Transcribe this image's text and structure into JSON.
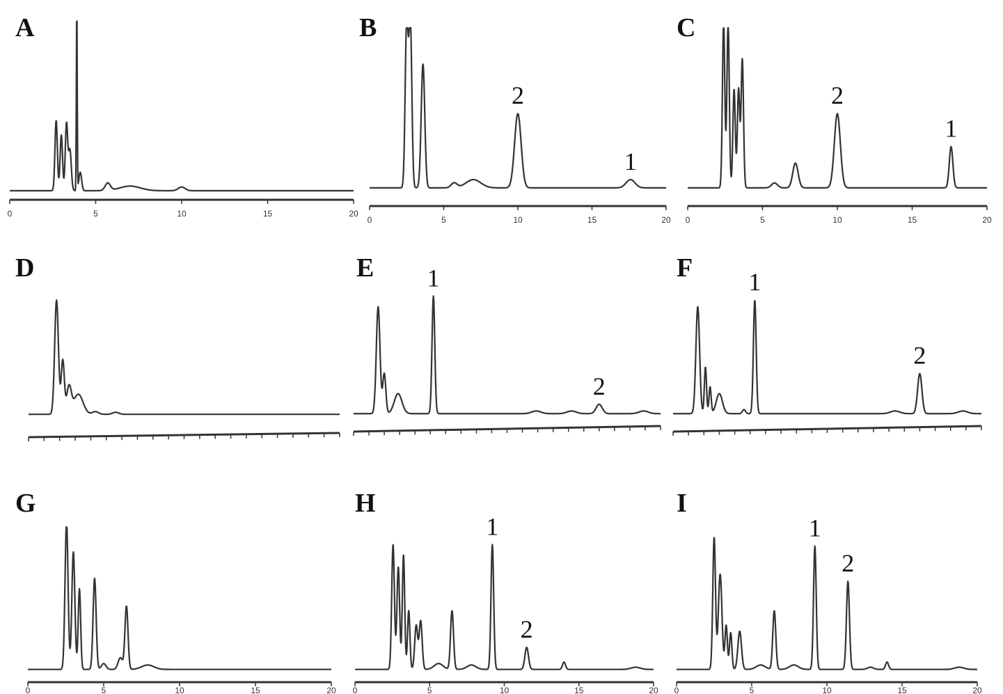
{
  "chart_data": [
    {
      "type": "line",
      "panel": "A",
      "xlim": [
        0,
        20
      ],
      "xticks": [
        0,
        5,
        10,
        15,
        20
      ],
      "tick_labels": [
        "0",
        "5",
        "10",
        "15",
        "20"
      ],
      "baseline": 0.03,
      "peaks": [
        [
          2.7,
          0.38,
          0.07
        ],
        [
          3.0,
          0.3,
          0.07
        ],
        [
          3.3,
          0.36,
          0.07
        ],
        [
          3.5,
          0.22,
          0.08
        ],
        [
          3.9,
          1.0,
          0.025
        ],
        [
          4.1,
          0.1,
          0.08
        ],
        [
          5.7,
          0.04,
          0.15
        ],
        [
          7.0,
          0.025,
          0.6
        ],
        [
          10.0,
          0.02,
          0.2
        ]
      ],
      "labels": []
    },
    {
      "type": "line",
      "panel": "B",
      "xlim": [
        0,
        20
      ],
      "xticks": [
        0,
        5,
        10,
        15,
        20
      ],
      "tick_labels": [
        "0",
        "5",
        "10",
        "15",
        "20"
      ],
      "baseline": 0.03,
      "peaks": [
        [
          2.5,
          1.0,
          0.1
        ],
        [
          2.75,
          1.0,
          0.1
        ],
        [
          3.6,
          0.75,
          0.12
        ],
        [
          5.7,
          0.03,
          0.2
        ],
        [
          7.0,
          0.05,
          0.5
        ],
        [
          10.0,
          0.45,
          0.22
        ],
        [
          17.6,
          0.05,
          0.3
        ]
      ],
      "labels": [
        {
          "text": "2",
          "x": 10.0
        },
        {
          "text": "1",
          "x": 17.6
        }
      ]
    },
    {
      "type": "line",
      "panel": "C",
      "xlim": [
        0,
        20
      ],
      "xticks": [
        0,
        5,
        10,
        15,
        20
      ],
      "tick_labels": [
        "0",
        "5",
        "10",
        "15",
        "20"
      ],
      "baseline": 0.03,
      "peaks": [
        [
          2.4,
          1.0,
          0.08
        ],
        [
          2.7,
          1.0,
          0.08
        ],
        [
          3.1,
          0.6,
          0.08
        ],
        [
          3.4,
          0.6,
          0.08
        ],
        [
          3.65,
          0.78,
          0.08
        ],
        [
          5.8,
          0.03,
          0.2
        ],
        [
          7.2,
          0.15,
          0.18
        ],
        [
          10.0,
          0.45,
          0.2
        ],
        [
          17.6,
          0.25,
          0.12
        ]
      ],
      "labels": [
        {
          "text": "2",
          "x": 10.0
        },
        {
          "text": "1",
          "x": 17.6
        }
      ]
    },
    {
      "type": "line",
      "panel": "D",
      "xlim": [
        0,
        20
      ],
      "xticks": [
        0,
        1,
        2,
        3,
        4,
        5,
        6,
        7,
        8,
        9,
        10,
        11,
        12,
        13,
        14,
        15,
        16,
        17,
        18,
        19,
        20
      ],
      "tick_labels": [],
      "baseline": 0.03,
      "peaks": [
        [
          1.8,
          0.85,
          0.12
        ],
        [
          2.2,
          0.4,
          0.1
        ],
        [
          2.6,
          0.2,
          0.15
        ],
        [
          3.2,
          0.15,
          0.3
        ],
        [
          4.3,
          0.02,
          0.2
        ],
        [
          5.6,
          0.015,
          0.2
        ]
      ],
      "labels": []
    },
    {
      "type": "line",
      "panel": "E",
      "xlim": [
        0,
        20
      ],
      "xticks": [
        0,
        1,
        2,
        3,
        4,
        5,
        6,
        7,
        8,
        9,
        10,
        11,
        12,
        13,
        14,
        15,
        16,
        17,
        18,
        19,
        20
      ],
      "tick_labels": [],
      "baseline": 0.03,
      "peaks": [
        [
          1.6,
          0.8,
          0.12
        ],
        [
          2.0,
          0.3,
          0.1
        ],
        [
          2.9,
          0.15,
          0.25
        ],
        [
          5.2,
          0.88,
          0.09
        ],
        [
          11.9,
          0.02,
          0.3
        ],
        [
          14.2,
          0.02,
          0.3
        ],
        [
          16.0,
          0.07,
          0.2
        ],
        [
          18.9,
          0.02,
          0.3
        ]
      ],
      "labels": [
        {
          "text": "1",
          "x": 5.2
        },
        {
          "text": "2",
          "x": 16.0
        }
      ]
    },
    {
      "type": "line",
      "panel": "F",
      "xlim": [
        0,
        20
      ],
      "xticks": [
        0,
        1,
        2,
        3,
        4,
        5,
        6,
        7,
        8,
        9,
        10,
        11,
        12,
        13,
        14,
        15,
        16,
        17,
        18,
        19,
        20
      ],
      "tick_labels": [],
      "baseline": 0.03,
      "peaks": [
        [
          1.6,
          0.8,
          0.12
        ],
        [
          2.1,
          0.35,
          0.07
        ],
        [
          2.4,
          0.2,
          0.07
        ],
        [
          3.0,
          0.15,
          0.2
        ],
        [
          4.6,
          0.03,
          0.1
        ],
        [
          5.3,
          0.85,
          0.09
        ],
        [
          14.4,
          0.02,
          0.3
        ],
        [
          16.0,
          0.3,
          0.14
        ],
        [
          18.8,
          0.02,
          0.3
        ]
      ],
      "labels": [
        {
          "text": "1",
          "x": 5.3
        },
        {
          "text": "2",
          "x": 16.0
        }
      ]
    },
    {
      "type": "line",
      "panel": "G",
      "xlim": [
        0,
        20
      ],
      "xticks": [
        0,
        5,
        10,
        15,
        20
      ],
      "tick_labels": [
        "0",
        "5",
        "10",
        "15",
        "20"
      ],
      "baseline": 0.03,
      "peaks": [
        [
          2.55,
          1.0,
          0.1
        ],
        [
          3.0,
          0.8,
          0.1
        ],
        [
          3.4,
          0.55,
          0.08
        ],
        [
          4.4,
          0.62,
          0.1
        ],
        [
          5.0,
          0.04,
          0.15
        ],
        [
          6.1,
          0.08,
          0.15
        ],
        [
          6.5,
          0.43,
          0.1
        ],
        [
          7.9,
          0.03,
          0.4
        ]
      ],
      "labels": []
    },
    {
      "type": "line",
      "panel": "H",
      "xlim": [
        0,
        20
      ],
      "xticks": [
        0,
        5,
        10,
        15,
        20
      ],
      "tick_labels": [
        "0",
        "5",
        "10",
        "15",
        "20"
      ],
      "baseline": 0.03,
      "peaks": [
        [
          2.55,
          0.85,
          0.09
        ],
        [
          2.9,
          0.7,
          0.09
        ],
        [
          3.25,
          0.78,
          0.08
        ],
        [
          3.6,
          0.4,
          0.08
        ],
        [
          4.1,
          0.3,
          0.1
        ],
        [
          4.4,
          0.33,
          0.1
        ],
        [
          5.6,
          0.04,
          0.3
        ],
        [
          6.5,
          0.4,
          0.1
        ],
        [
          7.8,
          0.03,
          0.3
        ],
        [
          9.2,
          0.85,
          0.09
        ],
        [
          11.5,
          0.15,
          0.12
        ],
        [
          14.0,
          0.05,
          0.1
        ],
        [
          18.8,
          0.015,
          0.3
        ]
      ],
      "labels": [
        {
          "text": "1",
          "x": 9.2
        },
        {
          "text": "2",
          "x": 11.5
        }
      ]
    },
    {
      "type": "line",
      "panel": "I",
      "xlim": [
        0,
        20
      ],
      "xticks": [
        0,
        5,
        10,
        15,
        20
      ],
      "tick_labels": [
        "0",
        "5",
        "10",
        "15",
        "20"
      ],
      "baseline": 0.03,
      "peaks": [
        [
          2.5,
          0.9,
          0.09
        ],
        [
          2.9,
          0.65,
          0.12
        ],
        [
          3.3,
          0.3,
          0.08
        ],
        [
          3.6,
          0.25,
          0.08
        ],
        [
          4.2,
          0.26,
          0.12
        ],
        [
          5.6,
          0.03,
          0.3
        ],
        [
          6.5,
          0.4,
          0.1
        ],
        [
          7.8,
          0.03,
          0.3
        ],
        [
          9.2,
          0.84,
          0.09
        ],
        [
          11.4,
          0.6,
          0.1
        ],
        [
          12.9,
          0.015,
          0.2
        ],
        [
          14.0,
          0.05,
          0.1
        ],
        [
          18.8,
          0.015,
          0.3
        ]
      ],
      "labels": [
        {
          "text": "1",
          "x": 9.2
        },
        {
          "text": "2",
          "x": 11.4
        }
      ]
    }
  ]
}
